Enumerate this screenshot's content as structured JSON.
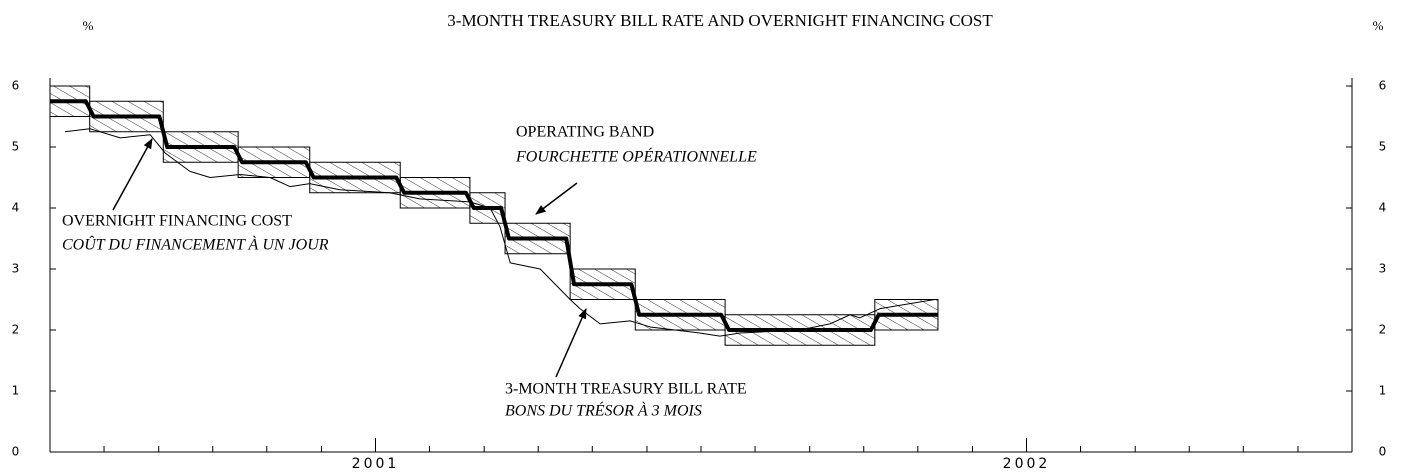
{
  "chart_data": {
    "type": "line",
    "title": "3-MONTH TREASURY BILL RATE AND OVERNIGHT FINANCING COST",
    "y_unit_left": "%",
    "y_unit_right": "%",
    "xlim": [
      2000.5,
      2002.5
    ],
    "xticks": [
      {
        "value": 2001,
        "label": "2001"
      },
      {
        "value": 2002,
        "label": "2002"
      }
    ],
    "xminorticks": [
      2000.5,
      2000.583,
      2000.667,
      2000.75,
      2000.833,
      2000.917,
      2001.083,
      2001.167,
      2001.25,
      2001.333,
      2001.417,
      2001.5,
      2001.583,
      2001.667,
      2001.75,
      2001.833,
      2001.917,
      2002.083,
      2002.167,
      2002.25,
      2002.333,
      2002.417,
      2002.5
    ],
    "ylim": [
      0,
      6
    ],
    "yticks": [
      0,
      1,
      2,
      3,
      4,
      5,
      6
    ],
    "band": [
      {
        "start": 2000.5,
        "end": 2000.561,
        "low": 5.5,
        "high": 6.0
      },
      {
        "start": 2000.561,
        "end": 2000.674,
        "low": 5.25,
        "high": 5.75
      },
      {
        "start": 2000.674,
        "end": 2000.789,
        "low": 4.75,
        "high": 5.25
      },
      {
        "start": 2000.789,
        "end": 2000.899,
        "low": 4.5,
        "high": 5.0
      },
      {
        "start": 2000.899,
        "end": 2001.038,
        "low": 4.25,
        "high": 4.75
      },
      {
        "start": 2001.038,
        "end": 2001.145,
        "low": 4.0,
        "high": 4.5
      },
      {
        "start": 2001.145,
        "end": 2001.199,
        "low": 3.75,
        "high": 4.25
      },
      {
        "start": 2001.199,
        "end": 2001.299,
        "low": 3.25,
        "high": 3.75
      },
      {
        "start": 2001.299,
        "end": 2001.399,
        "low": 2.5,
        "high": 3.0
      },
      {
        "start": 2001.399,
        "end": 2001.537,
        "low": 2.0,
        "high": 2.5
      },
      {
        "start": 2001.537,
        "end": 2001.767,
        "low": 1.75,
        "high": 2.25
      },
      {
        "start": 2001.767,
        "end": 2001.864,
        "low": 2.0,
        "high": 2.5
      }
    ],
    "series": [
      {
        "name": "OVERNIGHT FINANCING COST",
        "color": "#000000",
        "width": 4,
        "x": [
          2000.5,
          2000.555,
          2000.567,
          2000.668,
          2000.68,
          2000.783,
          2000.795,
          2000.893,
          2000.905,
          2001.032,
          2001.044,
          2001.139,
          2001.151,
          2001.193,
          2001.205,
          2001.293,
          2001.305,
          2001.393,
          2001.405,
          2001.531,
          2001.543,
          2001.761,
          2001.773,
          2001.864
        ],
        "values": [
          5.75,
          5.75,
          5.5,
          5.5,
          5.0,
          5.0,
          4.75,
          4.75,
          4.5,
          4.5,
          4.25,
          4.25,
          4.0,
          4.0,
          3.5,
          3.5,
          2.75,
          2.75,
          2.25,
          2.25,
          2.0,
          2.0,
          2.25,
          2.25
        ]
      },
      {
        "name": "3-MONTH TREASURY BILL RATE",
        "color": "#000000",
        "width": 1,
        "x": [
          2000.523,
          2000.561,
          2000.608,
          2000.654,
          2000.677,
          2000.715,
          2000.746,
          2000.792,
          2000.838,
          2000.869,
          2000.899,
          2000.945,
          2001.022,
          2001.068,
          2001.145,
          2001.176,
          2001.191,
          2001.207,
          2001.253,
          2001.299,
          2001.314,
          2001.345,
          2001.391,
          2001.422,
          2001.498,
          2001.529,
          2001.56,
          2001.652,
          2001.698,
          2001.729,
          2001.744,
          2001.775,
          2001.859
        ],
        "values": [
          5.25,
          5.3,
          5.15,
          5.2,
          4.9,
          4.6,
          4.5,
          4.55,
          4.5,
          4.35,
          4.4,
          4.3,
          4.25,
          4.15,
          4.1,
          4.0,
          3.7,
          3.1,
          3.0,
          2.5,
          2.35,
          2.1,
          2.15,
          2.05,
          1.95,
          1.9,
          1.95,
          2.0,
          2.1,
          2.25,
          2.2,
          2.35,
          2.5
        ]
      }
    ],
    "annotations": [
      {
        "text": "OPERATING BAND",
        "text2": "FOURCHETTE OPÉRATIONNELLE"
      },
      {
        "text": "OVERNIGHT FINANCING COST",
        "text2": "COÛT DU FINANCEMENT À UN JOUR"
      },
      {
        "text": "3-MONTH TREASURY BILL RATE",
        "text2": "BONS DU TRÉSOR À 3 MOIS"
      }
    ]
  }
}
